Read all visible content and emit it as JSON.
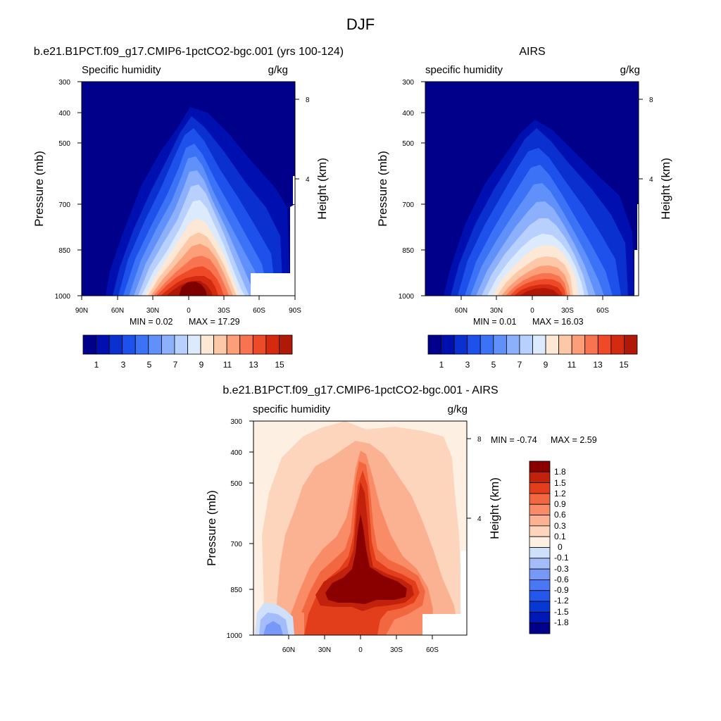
{
  "figure_title": "DJF",
  "chart_data": [
    {
      "type": "heatmap",
      "title": "b.e21.B1PCT.f09_g17.CMIP6-1pctCO2-bgc.001 (yrs 100-124)",
      "left_label": "Specific humidity",
      "right_label": "g/kg",
      "ylabel": "Pressure (mb)",
      "y2label": "Height (km)",
      "x_ticks": [
        "90N",
        "60N",
        "30N",
        "0",
        "30S",
        "60S",
        "90S"
      ],
      "y_ticks": [
        "300",
        "400",
        "500",
        "700",
        "850",
        "1000"
      ],
      "y2_ticks": [
        "8",
        "4"
      ],
      "min_label": "MIN =   0.02",
      "max_label": "MAX =  17.29",
      "min": 0.02,
      "max": 17.29,
      "xlim": [
        90,
        -90
      ],
      "ylim": [
        1000,
        300
      ],
      "colorbar_labels": [
        "1",
        "3",
        "5",
        "7",
        "9",
        "11",
        "13",
        "15"
      ],
      "levels": [
        1,
        2,
        3,
        4,
        5,
        6,
        7,
        8,
        9,
        10,
        11,
        12,
        13,
        14,
        15,
        16
      ]
    },
    {
      "type": "heatmap",
      "title": "AIRS",
      "left_label": "specific humidity",
      "right_label": "g/kg",
      "ylabel": "Pressure (mb)",
      "y2label": "Height (km)",
      "x_ticks": [
        "60N",
        "30N",
        "0",
        "30S",
        "60S"
      ],
      "y_ticks": [
        "300",
        "400",
        "500",
        "700",
        "850",
        "1000"
      ],
      "y2_ticks": [
        "8",
        "4"
      ],
      "min_label": "MIN =   0.01",
      "max_label": "MAX =  16.03",
      "min": 0.01,
      "max": 16.03,
      "xlim": [
        90,
        -90
      ],
      "ylim": [
        1000,
        300
      ],
      "colorbar_labels": [
        "1",
        "3",
        "5",
        "7",
        "9",
        "11",
        "13",
        "15"
      ],
      "levels": [
        1,
        2,
        3,
        4,
        5,
        6,
        7,
        8,
        9,
        10,
        11,
        12,
        13,
        14,
        15,
        16
      ]
    },
    {
      "type": "heatmap",
      "title": "b.e21.B1PCT.f09_g17.CMIP6-1pctCO2-bgc.001 - AIRS",
      "left_label": "specific humidity",
      "right_label": "g/kg",
      "ylabel": "Pressure (mb)",
      "y2label": "Height (km)",
      "x_ticks": [
        "60N",
        "30N",
        "0",
        "30S",
        "60S"
      ],
      "y_ticks": [
        "300",
        "400",
        "500",
        "700",
        "850",
        "1000"
      ],
      "y2_ticks": [
        "8",
        "4"
      ],
      "min_label": "MIN =  -0.74",
      "max_label": "MAX =   2.59",
      "min": -0.74,
      "max": 2.59,
      "xlim": [
        90,
        -90
      ],
      "ylim": [
        1000,
        300
      ],
      "colorbar_labels": [
        "1.8",
        "1.5",
        "1.2",
        "0.9",
        "0.6",
        "0.3",
        "0.1",
        "0",
        "-0.1",
        "-0.3",
        "-0.6",
        "-0.9",
        "-1.2",
        "-1.5",
        "-1.8"
      ],
      "levels": [
        1.8,
        1.5,
        1.2,
        0.9,
        0.6,
        0.3,
        0.1,
        0,
        -0.1,
        -0.3,
        -0.6,
        -0.9,
        -1.2,
        -1.5,
        -1.8
      ]
    }
  ],
  "palettes": {
    "seq": [
      "#00008b",
      "#0010b0",
      "#0a30d0",
      "#1e50ec",
      "#3c72f6",
      "#6090fa",
      "#8cb0fc",
      "#b8d0fd",
      "#dceafd",
      "#fde8d6",
      "#fdc8a8",
      "#fc9e78",
      "#f87450",
      "#ef4a28",
      "#d42a10",
      "#b01808",
      "#7e0000"
    ],
    "diff": [
      "#00008b",
      "#0018b4",
      "#0838d4",
      "#2458ec",
      "#4a78f4",
      "#7898f8",
      "#a4bcfa",
      "#cfe0fb",
      "#fdefe2",
      "#fdd4bc",
      "#fbb292",
      "#f98c66",
      "#f26640",
      "#e23e1c",
      "#c2220c",
      "#8a0000"
    ]
  }
}
